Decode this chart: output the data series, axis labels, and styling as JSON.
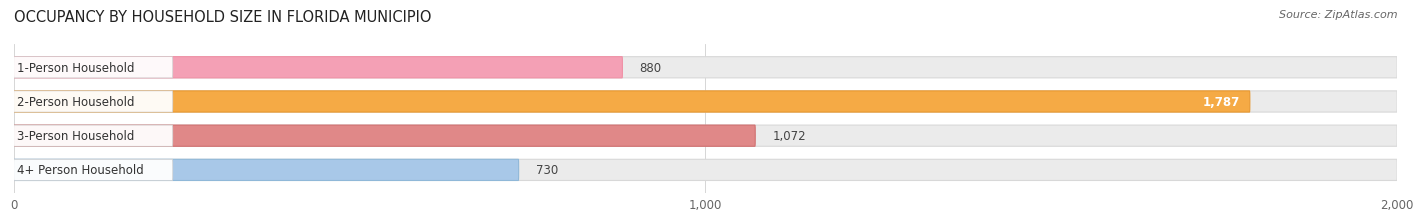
{
  "title": "OCCUPANCY BY HOUSEHOLD SIZE IN FLORIDA MUNICIPIO",
  "source": "Source: ZipAtlas.com",
  "categories": [
    "1-Person Household",
    "2-Person Household",
    "3-Person Household",
    "4+ Person Household"
  ],
  "values": [
    880,
    1787,
    1072,
    730
  ],
  "bar_colors": [
    "#f4a0b5",
    "#f5aa45",
    "#e08888",
    "#a8c8e8"
  ],
  "bar_border_colors": [
    "#f090a5",
    "#e89830",
    "#d07070",
    "#90b8d8"
  ],
  "xlim": [
    0,
    2000
  ],
  "xticks": [
    0,
    1000,
    2000
  ],
  "xtick_labels": [
    "0",
    "1,000",
    "2,000"
  ],
  "track_color": "#ebebeb",
  "track_border_color": "#d8d8d8",
  "title_fontsize": 10.5,
  "source_fontsize": 8,
  "label_fontsize": 8.5,
  "value_fontsize": 8.5,
  "tick_fontsize": 8.5,
  "bg_color": "#ffffff"
}
